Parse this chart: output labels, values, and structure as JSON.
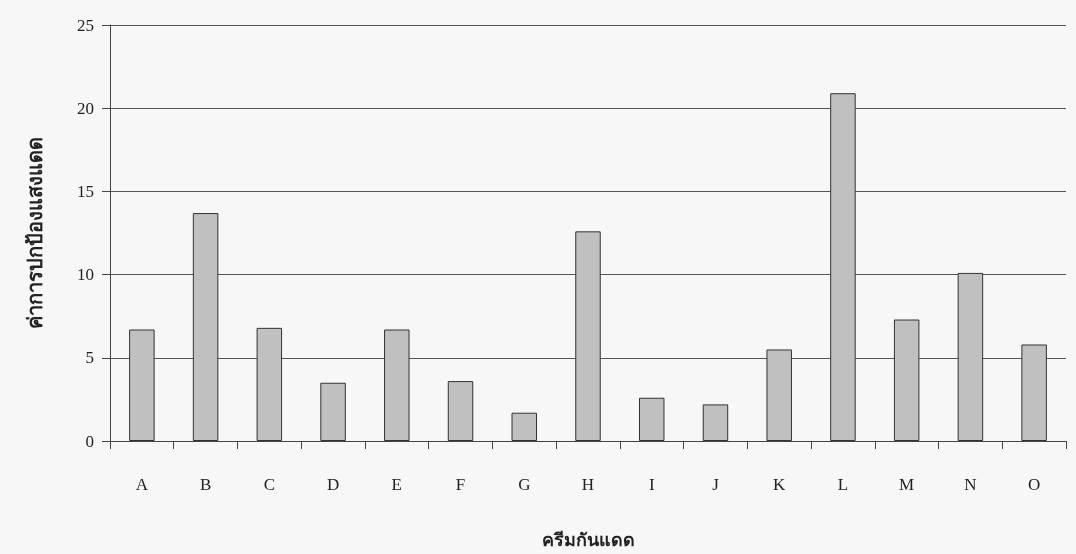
{
  "chart_data": {
    "type": "bar",
    "xlabel": "ครีมกันแดด",
    "ylabel": "ค่าการปกป้องแสงแดด",
    "categories": [
      "A",
      "B",
      "C",
      "D",
      "E",
      "F",
      "G",
      "H",
      "I",
      "J",
      "K",
      "L",
      "M",
      "N",
      "O"
    ],
    "values": [
      6.7,
      13.7,
      6.8,
      3.5,
      6.7,
      3.6,
      1.7,
      12.6,
      2.6,
      2.2,
      5.5,
      20.9,
      7.3,
      10.1,
      5.8
    ],
    "color": "#c0c0c0",
    "ylim": [
      0,
      25
    ],
    "yticks": [
      0,
      5,
      10,
      15,
      20,
      25
    ],
    "grid": "y"
  }
}
